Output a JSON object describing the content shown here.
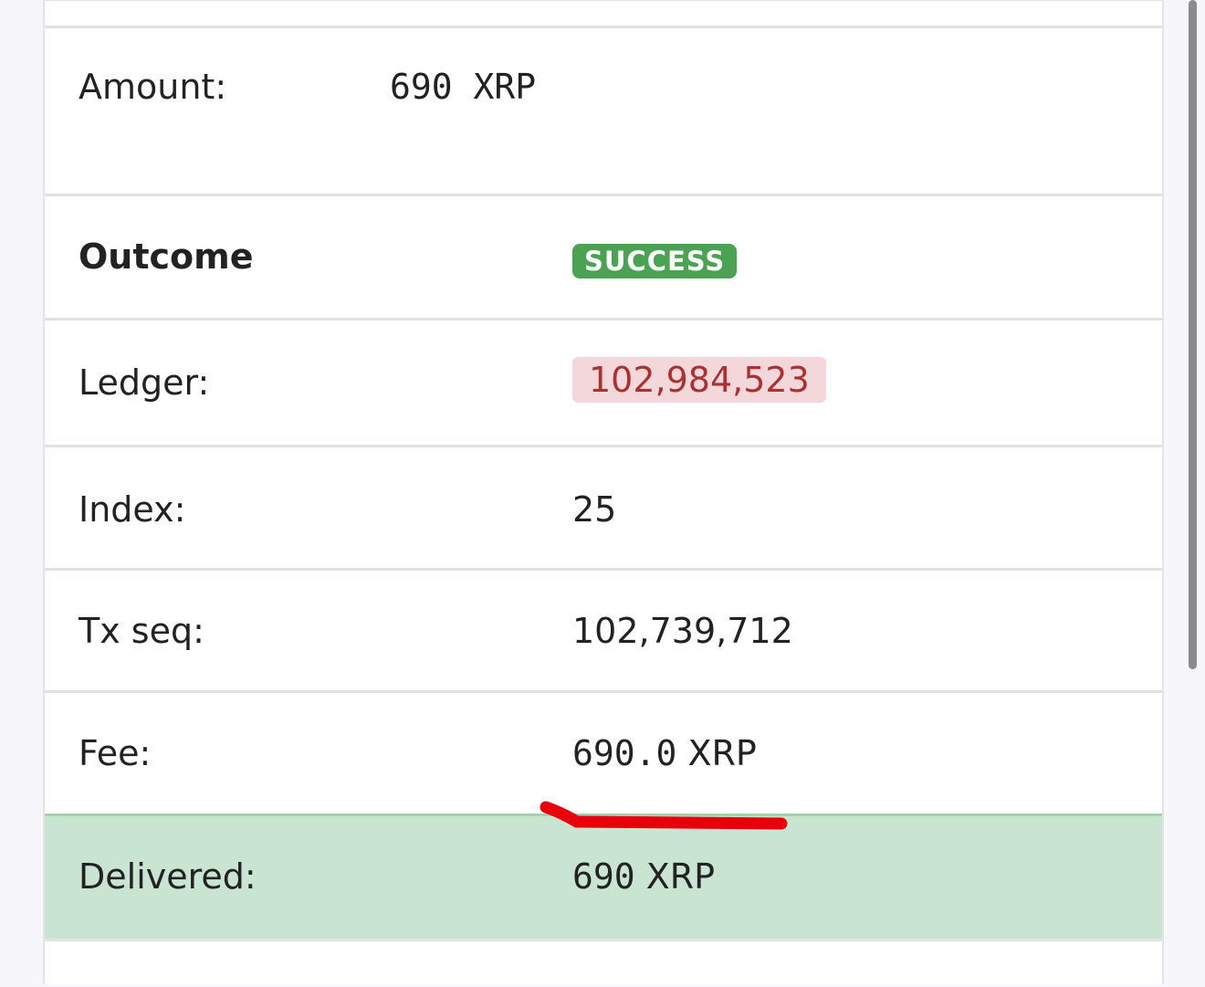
{
  "rows": {
    "amount": {
      "label": "Amount:",
      "value": "690 XRP"
    },
    "outcome": {
      "label": "Outcome",
      "value": "SUCCESS"
    },
    "ledger": {
      "label": "Ledger:",
      "value": "102,984,523"
    },
    "index": {
      "label": "Index:",
      "value": "25"
    },
    "tx_seq": {
      "label": "Tx seq:",
      "value": "102,739,712"
    },
    "fee": {
      "label": "Fee:",
      "value_number": "690.0",
      "value_unit": "XRP"
    },
    "delivered": {
      "label": "Delivered:",
      "value_number": "690",
      "value_unit": "XRP"
    }
  },
  "colors": {
    "success": "#4aa252",
    "ledger_bg": "#f4d7da",
    "ledger_text": "#a83232",
    "delivered_bg": "#c9e4d0",
    "annotation": "#e8000a"
  }
}
